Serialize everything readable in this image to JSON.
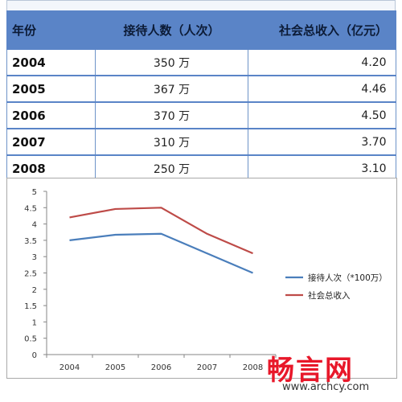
{
  "table": {
    "headers": [
      "年份",
      "接待人数（人次）",
      "社会总收入（亿元）"
    ],
    "rows": [
      {
        "year": "2004",
        "visits": "350 万",
        "income": "4.20"
      },
      {
        "year": "2005",
        "visits": "367 万",
        "income": "4.46"
      },
      {
        "year": "2006",
        "visits": "370 万",
        "income": "4.50"
      },
      {
        "year": "2007",
        "visits": "310 万",
        "income": "3.70"
      },
      {
        "year": "2008",
        "visits": "250 万",
        "income": "3.10"
      }
    ]
  },
  "chart_data": {
    "type": "line",
    "categories": [
      "2004",
      "2005",
      "2006",
      "2007",
      "2008"
    ],
    "series": [
      {
        "name": "接待人次（*100万）",
        "values": [
          3.5,
          3.67,
          3.7,
          3.1,
          2.5
        ],
        "color": "#4a7ebb"
      },
      {
        "name": "社会总收入",
        "values": [
          4.2,
          4.46,
          4.5,
          3.7,
          3.1
        ],
        "color": "#be4b48"
      }
    ],
    "ylim": [
      0,
      5
    ],
    "yticks": [
      "0",
      "0.5",
      "1",
      "1.5",
      "2",
      "2.5",
      "3",
      "3.5",
      "4",
      "4.5",
      "5"
    ],
    "grid": false,
    "legend_position": "right"
  },
  "watermark": {
    "brand": "畅言网",
    "url": "www.archcy.com",
    "color": "#e8182a"
  }
}
